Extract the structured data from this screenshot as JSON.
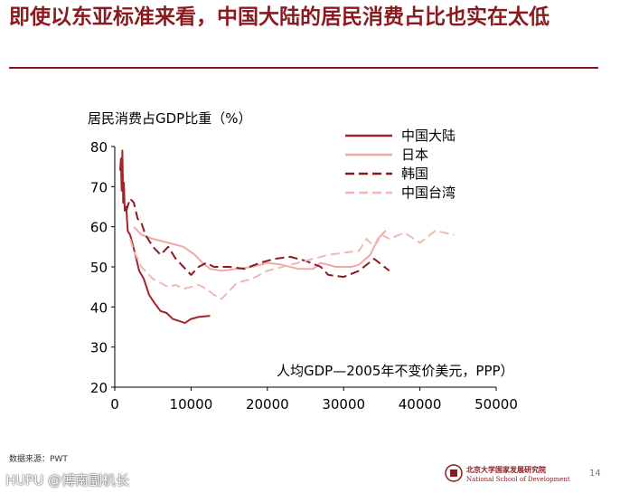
{
  "slide": {
    "title": "即使以东亚标准来看，中国大陆的居民消费占比也实在太低",
    "source": "数据来源：PWT",
    "watermark": "HUPU @博南副机长",
    "institution_cn": "北京大学国家发展研究院",
    "institution_en": "National School of Development",
    "page_number": "14"
  },
  "colors": {
    "title": "#8b1a1f",
    "mainland": "#a5232a",
    "japan": "#eeaaa6",
    "korea": "#8b1a1f",
    "taiwan": "#f2b7b3"
  },
  "chart_data": {
    "type": "line",
    "ylabel": "居民消费占GDP比重（%）",
    "xlabel": "人均GDP—2005年不变价美元，PPP）",
    "xlim": [
      0,
      50000
    ],
    "ylim": [
      20,
      80
    ],
    "xticks": [
      "0",
      "10000",
      "20000",
      "30000",
      "40000",
      "50000"
    ],
    "yticks": [
      "20",
      "30",
      "40",
      "50",
      "60",
      "70",
      "80"
    ],
    "grid": false,
    "legend_position": "top-right",
    "series": [
      {
        "name": "中国大陆",
        "style": "solid",
        "x": [
          700,
          800,
          900,
          1000,
          1100,
          1200,
          1300,
          1500,
          1700,
          2000,
          2300,
          2700,
          3200,
          3800,
          4500,
          5200,
          6000,
          6800,
          7600,
          8400,
          9200,
          10000,
          11000,
          12500
        ],
        "y": [
          74,
          77,
          69,
          79,
          66,
          71,
          64,
          65,
          59,
          58,
          56,
          53,
          49,
          47,
          43,
          41,
          39,
          38.5,
          37,
          36.5,
          36,
          37,
          37.5,
          37.8
        ]
      },
      {
        "name": "日本",
        "style": "solid",
        "x": [
          2500,
          3500,
          5000,
          7000,
          9000,
          10500,
          11500,
          12500,
          14000,
          16000,
          18000,
          20000,
          22000,
          24000,
          26000,
          27000,
          29000,
          31000,
          32000,
          33500,
          34500,
          35500
        ],
        "y": [
          60,
          58,
          57,
          56,
          55,
          53,
          51,
          49.5,
          49,
          49.5,
          50,
          51,
          50.5,
          49.5,
          49.5,
          51,
          50,
          50,
          50.5,
          53,
          57,
          59
        ]
      },
      {
        "name": "韩国",
        "style": "dashed",
        "x": [
          1500,
          2000,
          2500,
          3000,
          3500,
          4000,
          5000,
          6000,
          7000,
          8000,
          9000,
          10000,
          11000,
          12000,
          13000,
          15000,
          17000,
          19000,
          21000,
          23000,
          25000,
          27000,
          28000,
          30000,
          32000,
          34000,
          36000
        ],
        "y": [
          64,
          67,
          66,
          62,
          61,
          58,
          55,
          53,
          55,
          52,
          50,
          48,
          50,
          51,
          50,
          50,
          49.5,
          51,
          52,
          52.5,
          51.5,
          50,
          48,
          47.5,
          49,
          52,
          49
        ]
      },
      {
        "name": "中国台湾",
        "style": "dashed",
        "x": [
          2000,
          2500,
          3000,
          3500,
          4000,
          5000,
          6000,
          7000,
          8000,
          9000,
          10000,
          11000,
          12000,
          13000,
          14000,
          16000,
          18000,
          20000,
          22000,
          24000,
          26000,
          28000,
          30000,
          32000,
          33000,
          34000,
          35000,
          36000,
          38000,
          40000,
          42000,
          44500
        ],
        "y": [
          57,
          54,
          52,
          50,
          49,
          47,
          46,
          45,
          45.5,
          44.5,
          45,
          45.5,
          44.5,
          43,
          42,
          46,
          47,
          49,
          50,
          51,
          52,
          53,
          53.5,
          54,
          57,
          55,
          58,
          57,
          58.5,
          56,
          59,
          58
        ]
      }
    ]
  }
}
